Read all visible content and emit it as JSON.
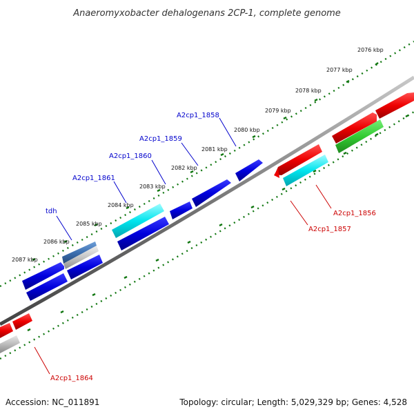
{
  "title": "Anaeromyxobacter dehalogenans 2CP-1, complete genome",
  "footer": {
    "accession": "Accession: NC_011891",
    "topology": "Topology: circular; Length: 5,029,329 bp; Genes: 4,528"
  },
  "ticks": [
    {
      "label": "2076 kbp"
    },
    {
      "label": "2077 kbp"
    },
    {
      "label": "2078 kbp"
    },
    {
      "label": "2079 kbp"
    },
    {
      "label": "2080 kbp"
    },
    {
      "label": "2081 kbp"
    },
    {
      "label": "2082 kbp"
    },
    {
      "label": "2083 kbp"
    },
    {
      "label": "2084 kbp"
    },
    {
      "label": "2085 kbp"
    },
    {
      "label": "2086 kbp"
    },
    {
      "label": "2087 kbp"
    }
  ],
  "gene_labels": [
    {
      "text": "A2cp1_1858",
      "color": "#0000cc"
    },
    {
      "text": "A2cp1_1859",
      "color": "#0000cc"
    },
    {
      "text": "A2cp1_1860",
      "color": "#0000cc"
    },
    {
      "text": "A2cp1_1861",
      "color": "#0000cc"
    },
    {
      "text": "tdh",
      "color": "#0000cc"
    },
    {
      "text": "A2cp1_1856",
      "color": "#cc0000"
    },
    {
      "text": "A2cp1_1857",
      "color": "#cc0000"
    },
    {
      "text": "A2cp1_1864",
      "color": "#cc0000"
    }
  ],
  "feature_colors": {
    "forward_cds": "#0000dd",
    "reverse_cds": "#ee0000",
    "rna": "#00e5ee",
    "green_feature": "#33cc33",
    "pseudo": "#bbbbbb",
    "backbone": "#777777",
    "ruler": "#117711"
  }
}
